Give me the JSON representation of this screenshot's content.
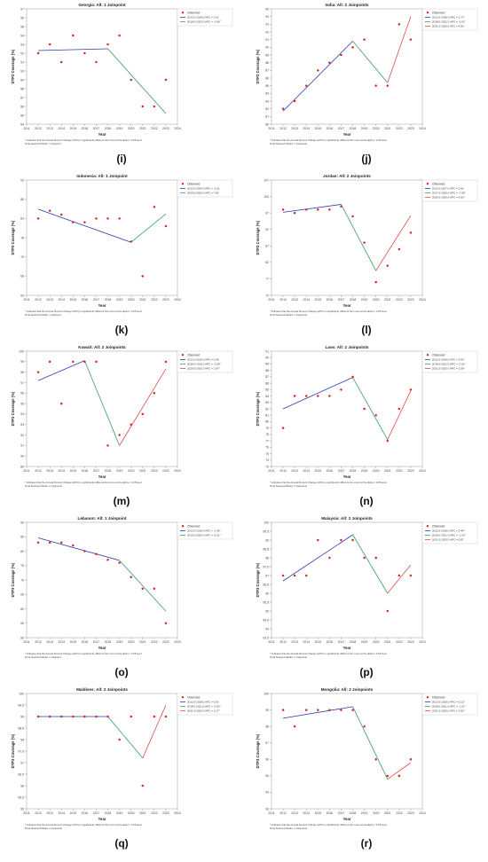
{
  "figure": {
    "footnote_line1": "* Indicates that the Annual Percent Change (APC) is significantly different from zero at the alpha = 0.05 level.",
    "legend_observed": "Observed",
    "xlabel": "Year",
    "ylabel": "DTP3 Coverage (%)"
  },
  "chart_data": [
    {
      "panel_label": "(i)",
      "type": "line",
      "title": "Georgia: All: 1 Joinpoint",
      "footnote_line2": "Final Selected Model: 1 Joinpoint.",
      "x": [
        2012,
        2013,
        2014,
        2015,
        2016,
        2017,
        2018,
        2019,
        2020,
        2021,
        2022,
        2023
      ],
      "observed": [
        92,
        93,
        91,
        94,
        92,
        91,
        93,
        94,
        89,
        86,
        86,
        89
      ],
      "ylim": [
        84,
        97
      ],
      "yticks": [
        84,
        85,
        86,
        87,
        88,
        89,
        90,
        91,
        92,
        93,
        94,
        95,
        96,
        97
      ],
      "xlim": [
        2011,
        2024
      ],
      "series": [
        {
          "name": "2012.0-2018.0 APC = 0.02",
          "color": "#2b3ab7",
          "x": [
            2012,
            2018
          ],
          "y": [
            92.3,
            92.5
          ]
        },
        {
          "name": "2018.0-2023.0 APC = -1.69*",
          "color": "#3a9a6e",
          "x": [
            2018,
            2023
          ],
          "y": [
            92.5,
            85.2
          ]
        }
      ]
    },
    {
      "panel_label": "(j)",
      "type": "line",
      "title": "India: All: 2 Joinpoints",
      "footnote_line2": "Final Selected Model: 2 Joinpoints.",
      "x": [
        2012,
        2013,
        2014,
        2015,
        2016,
        2017,
        2018,
        2019,
        2020,
        2021,
        2022,
        2023
      ],
      "observed": [
        82,
        83,
        85,
        87,
        88,
        89,
        90,
        91,
        85,
        85,
        93,
        91
      ],
      "ylim": [
        80,
        95
      ],
      "yticks": [
        80,
        81,
        82,
        83,
        84,
        85,
        86,
        87,
        88,
        89,
        90,
        91,
        92,
        93,
        94,
        95
      ],
      "xlim": [
        2011,
        2024
      ],
      "series": [
        {
          "name": "2012.0-2018.0 APC = 1.71*",
          "color": "#2b3ab7",
          "x": [
            2012,
            2018
          ],
          "y": [
            81.7,
            90.8
          ]
        },
        {
          "name": "2018.0-2021.0 APC = -2.01*",
          "color": "#3a9a6e",
          "x": [
            2018,
            2021
          ],
          "y": [
            90.8,
            85.4
          ]
        },
        {
          "name": "2021.0-2023.0 APC = 4.91*",
          "color": "#e04a4a",
          "x": [
            2021,
            2023
          ],
          "y": [
            85.4,
            94.0
          ]
        }
      ]
    },
    {
      "panel_label": "(k)",
      "type": "line",
      "title": "Indonesia: All: 1 Joinpoint",
      "footnote_line2": "Final Selected Model: 1 Joinpoint.",
      "x": [
        2012,
        2013,
        2014,
        2015,
        2016,
        2017,
        2018,
        2019,
        2020,
        2021,
        2022,
        2023
      ],
      "observed": [
        83,
        85,
        84,
        82,
        82,
        83,
        83,
        83,
        77,
        68,
        86,
        81
      ],
      "ylim": [
        63,
        93
      ],
      "yticks": [
        63,
        68,
        73,
        78,
        83,
        88,
        93
      ],
      "xlim": [
        2011,
        2024
      ],
      "series": [
        {
          "name": "2012.0-2020.0 APC = -2.01",
          "color": "#2b3ab7",
          "x": [
            2012,
            2020
          ],
          "y": [
            85.4,
            76.8
          ]
        },
        {
          "name": "2020.0-2023.0 APC = 7.80",
          "color": "#3a9a6e",
          "x": [
            2020,
            2023
          ],
          "y": [
            76.8,
            84.2
          ]
        }
      ]
    },
    {
      "panel_label": "(l)",
      "type": "line",
      "title": "Jordan: All: 2 Joinpoints",
      "footnote_line2": "Final Selected Model: 2 Joinpoints.",
      "x": [
        2012,
        2013,
        2014,
        2015,
        2016,
        2017,
        2018,
        2019,
        2020,
        2021,
        2022,
        2023
      ],
      "observed": [
        98,
        97,
        98,
        98,
        98,
        99,
        96,
        88,
        76,
        81,
        86,
        91
      ],
      "ylim": [
        72,
        107
      ],
      "yticks": [
        72,
        77,
        82,
        87,
        92,
        97,
        102,
        107
      ],
      "xlim": [
        2011,
        2024
      ],
      "series": [
        {
          "name": "2012.0-2017.0 APC = 0.64",
          "color": "#2b3ab7",
          "x": [
            2012,
            2017
          ],
          "y": [
            97.2,
            99.6
          ]
        },
        {
          "name": "2017.0-2020.0 APC = -7.05*",
          "color": "#3a9a6e",
          "x": [
            2017,
            2020
          ],
          "y": [
            99.6,
            79.5
          ]
        },
        {
          "name": "2020.0-2023.0 APC = 6.62*",
          "color": "#e04a4a",
          "x": [
            2020,
            2023
          ],
          "y": [
            79.5,
            96.2
          ]
        }
      ]
    },
    {
      "panel_label": "(m)",
      "type": "line",
      "title": "Kuwait: All: 2 Joinpoints",
      "footnote_line2": "Final Selected Model: 2 Joinpoints.",
      "x": [
        2012,
        2013,
        2014,
        2015,
        2016,
        2017,
        2018,
        2019,
        2020,
        2021,
        2022,
        2023
      ],
      "observed": [
        98,
        99,
        95,
        99,
        99,
        99,
        91,
        92,
        93,
        94,
        96,
        99
      ],
      "ylim": [
        89,
        100
      ],
      "yticks": [
        89,
        90,
        91,
        92,
        93,
        94,
        95,
        96,
        97,
        98,
        99,
        100
      ],
      "xlim": [
        2011,
        2024
      ],
      "series": [
        {
          "name": "2012.0-2016.0 APC = 0.49",
          "color": "#2b3ab7",
          "x": [
            2012,
            2016
          ],
          "y": [
            97.2,
            99.1
          ]
        },
        {
          "name": "2016.0-2019.0 APC = -2.59*",
          "color": "#3a9a6e",
          "x": [
            2016,
            2019
          ],
          "y": [
            99.1,
            91.0
          ]
        },
        {
          "name": "2019.0-2023.0 APC = 1.87*",
          "color": "#e04a4a",
          "x": [
            2019,
            2023
          ],
          "y": [
            91.0,
            98.3
          ]
        }
      ]
    },
    {
      "panel_label": "(n)",
      "type": "line",
      "title": "Laos: All: 2 Joinpoints",
      "footnote_line2": "Final Selected Model: 2 Joinpoints.",
      "x": [
        2012,
        2013,
        2014,
        2015,
        2016,
        2017,
        2018,
        2019,
        2020,
        2021,
        2022,
        2023
      ],
      "observed": [
        79,
        84,
        84,
        84,
        84,
        85,
        87,
        82,
        81,
        77,
        82,
        85
      ],
      "ylim": [
        73,
        91
      ],
      "yticks": [
        73,
        74,
        75,
        76,
        77,
        78,
        79,
        80,
        81,
        82,
        83,
        84,
        85,
        86,
        87,
        88,
        89,
        90,
        91
      ],
      "xlim": [
        2011,
        2024
      ],
      "series": [
        {
          "name": "2012.0-2018.0 APC = 0.93*",
          "color": "#2b3ab7",
          "x": [
            2012,
            2018
          ],
          "y": [
            82.0,
            86.9
          ]
        },
        {
          "name": "2018.0-2021.0 APC = -3.51*",
          "color": "#3a9a6e",
          "x": [
            2018,
            2021
          ],
          "y": [
            86.9,
            77.2
          ]
        },
        {
          "name": "2021.0-2023.0 APC = 3.58*",
          "color": "#e04a4a",
          "x": [
            2021,
            2023
          ],
          "y": [
            77.2,
            84.8
          ]
        }
      ]
    },
    {
      "panel_label": "(o)",
      "type": "line",
      "title": "Lebanon: All: 1 Joinpoint",
      "footnote_line2": "Final Selected Model: 1 Joinpoint.",
      "x": [
        2012,
        2013,
        2014,
        2015,
        2016,
        2017,
        2018,
        2019,
        2020,
        2021,
        2022,
        2023
      ],
      "observed": [
        83,
        83,
        83,
        82,
        80,
        79,
        77,
        76,
        71,
        67,
        67,
        55
      ],
      "ylim": [
        50,
        90
      ],
      "yticks": [
        50,
        55,
        60,
        65,
        70,
        75,
        80,
        85,
        90
      ],
      "xlim": [
        2011,
        2024
      ],
      "series": [
        {
          "name": "2012.0-2019.0 APC = -1.40*",
          "color": "#2b3ab7",
          "x": [
            2012,
            2019
          ],
          "y": [
            84.6,
            76.8
          ]
        },
        {
          "name": "2019.0-2023.0 APC = -6.21*",
          "color": "#3a9a6e",
          "x": [
            2019,
            2023
          ],
          "y": [
            76.8,
            59.2
          ]
        }
      ]
    },
    {
      "panel_label": "(p)",
      "type": "line",
      "title": "Malaysia: All: 2 Joinpoints",
      "footnote_line2": "Final Selected Model: 2 Joinpoints.",
      "x": [
        2012,
        2013,
        2014,
        2015,
        2016,
        2017,
        2018,
        2019,
        2020,
        2021,
        2022,
        2023
      ],
      "observed": [
        97,
        97,
        97,
        99,
        98,
        99,
        99,
        98,
        98,
        95,
        97,
        97
      ],
      "ylim": [
        93.5,
        100
      ],
      "yticks": [
        93.5,
        94,
        94.5,
        95,
        95.5,
        96,
        96.5,
        97,
        97.5,
        98,
        98.5,
        99,
        99.5,
        100
      ],
      "xlim": [
        2011,
        2024
      ],
      "series": [
        {
          "name": "2012.0-2018.0 APC = 0.44*",
          "color": "#2b3ab7",
          "x": [
            2012,
            2018
          ],
          "y": [
            96.7,
            99.3
          ]
        },
        {
          "name": "2018.0-2021.0 APC = -1.14*",
          "color": "#3a9a6e",
          "x": [
            2018,
            2021
          ],
          "y": [
            99.3,
            96.0
          ]
        },
        {
          "name": "2021.0-2023.0 APC = 0.87",
          "color": "#e04a4a",
          "x": [
            2021,
            2023
          ],
          "y": [
            96.0,
            97.6
          ]
        }
      ]
    },
    {
      "panel_label": "(q)",
      "type": "line",
      "title": "Maldives: All: 2 Joinpoints",
      "footnote_line2": "Final Selected Model: 2 Joinpoints.",
      "x": [
        2012,
        2013,
        2014,
        2015,
        2016,
        2017,
        2018,
        2019,
        2020,
        2021,
        2022,
        2023
      ],
      "observed": [
        99,
        99,
        99,
        99,
        99,
        99,
        99,
        98,
        99,
        96,
        99,
        99
      ],
      "ylim": [
        95,
        100
      ],
      "yticks": [
        95,
        95.5,
        96,
        96.5,
        97,
        97.5,
        98,
        98.5,
        99,
        99.5,
        100
      ],
      "xlim": [
        2011,
        2024
      ],
      "series": [
        {
          "name": "2012.0-2018.0 APC = 0.00",
          "color": "#2b3ab7",
          "x": [
            2012,
            2018
          ],
          "y": [
            99.0,
            99.0
          ]
        },
        {
          "name": "2018.0-2021.0 APC = -0.62*",
          "color": "#3a9a6e",
          "x": [
            2018,
            2021
          ],
          "y": [
            99.0,
            97.2
          ]
        },
        {
          "name": "2021.0-2023.0 APC = 1.17*",
          "color": "#e04a4a",
          "x": [
            2021,
            2023
          ],
          "y": [
            97.2,
            99.5
          ]
        }
      ]
    },
    {
      "panel_label": "(r)",
      "type": "line",
      "title": "Mongolia: All: 2 Joinpoints",
      "footnote_line2": "Final Selected Model: 2 Joinpoints.",
      "x": [
        2012,
        2013,
        2014,
        2015,
        2016,
        2017,
        2018,
        2019,
        2020,
        2021,
        2022,
        2023
      ],
      "observed": [
        99,
        98,
        99,
        99,
        99,
        99,
        99,
        98,
        96,
        95,
        95,
        96
      ],
      "ylim": [
        93,
        100
      ],
      "yticks": [
        93,
        94,
        95,
        96,
        97,
        98,
        99,
        100
      ],
      "xlim": [
        2011,
        2024
      ],
      "series": [
        {
          "name": "2012.0-2018.0 APC = 0.12*",
          "color": "#2b3ab7",
          "x": [
            2012,
            2018
          ],
          "y": [
            98.5,
            99.2
          ]
        },
        {
          "name": "2018.0-2021.0 APC = -1.51*",
          "color": "#3a9a6e",
          "x": [
            2018,
            2021
          ],
          "y": [
            99.2,
            94.8
          ]
        },
        {
          "name": "2021.0-2023.0 APC = 0.52*",
          "color": "#e04a4a",
          "x": [
            2021,
            2023
          ],
          "y": [
            94.8,
            95.8
          ]
        }
      ]
    }
  ]
}
